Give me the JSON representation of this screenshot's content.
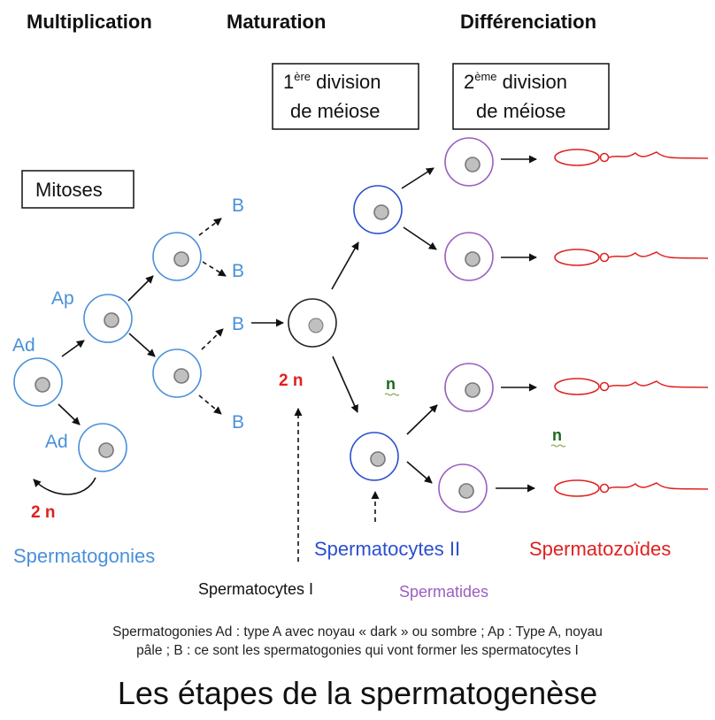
{
  "headers": {
    "multiplication": "Multiplication",
    "maturation": "Maturation",
    "differenciation": "Différenciation"
  },
  "boxes": {
    "mitoses": "Mitoses",
    "division1_num": "1",
    "division1_sup": "ère",
    "division1_rest": " division",
    "division1_line2": "de méiose",
    "division2_num": "2",
    "division2_sup": "ème",
    "division2_rest": " division",
    "division2_line2": "de méiose"
  },
  "cell_labels": {
    "ad_top": "Ad",
    "ad_bottom": "Ad",
    "ap": "Ap",
    "b1": "B",
    "b2": "B",
    "b3": "B",
    "b4": "B"
  },
  "ploidy": {
    "two_n_left": "2 n",
    "two_n_center": "2 n",
    "n_center": "n",
    "n_right": "n"
  },
  "captions": {
    "spermatogonies": "Spermatogonies",
    "spermatocytes_1": "Spermatocytes  I",
    "spermatocytes_2": "Spermatocytes II",
    "spermatides": "Spermatides",
    "spermatozoides": "Spermatozoïdes"
  },
  "note": {
    "line1": "Spermatogonies Ad : type A avec noyau « dark » ou sombre ; Ap : Type A, noyau",
    "line2": "pâle ; B : ce sont les spermatogonies qui vont former les spermatocytes I"
  },
  "title": "Les étapes de la spermatogenèse",
  "colors": {
    "spermatogonia": "#4a90d9",
    "spermatocyte_1": "#222222",
    "spermatocyte_2": "#2a4fd0",
    "spermatid": "#9a5fc0",
    "spermatozoid": "#e02020",
    "nucleus": "#c0c0c0"
  }
}
